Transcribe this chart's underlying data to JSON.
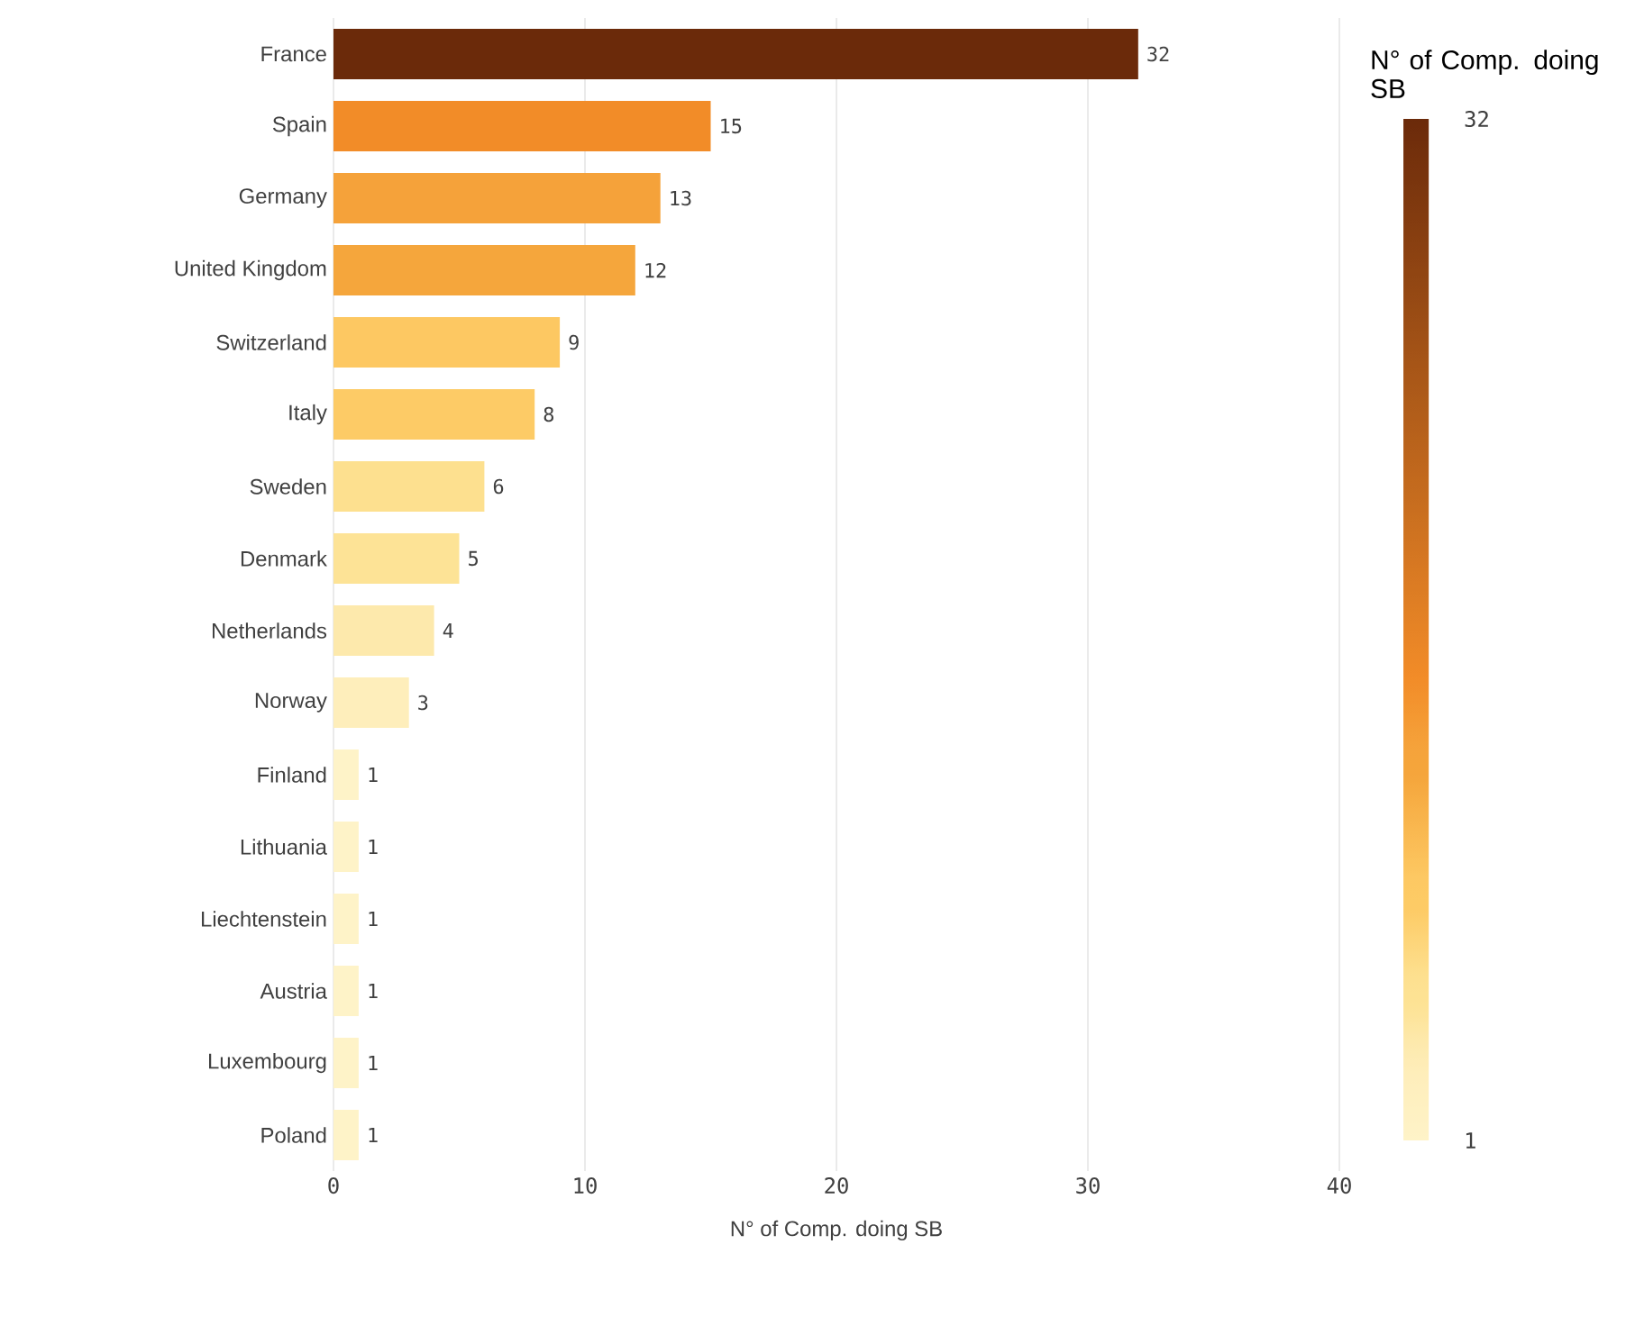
{
  "chart_data": {
    "type": "bar",
    "orientation": "horizontal",
    "xlabel": "N° of Comp. doing SB",
    "clabel": "N° of Comp. doing SB",
    "categories": [
      "France",
      "Spain",
      "Germany",
      "United Kingdom",
      "Switzerland",
      "Italy",
      "Sweden",
      "Denmark",
      "Netherlands",
      "Norway",
      "Finland",
      "Lithuania",
      "Liechtenstein",
      "Austria",
      "Luxembourg",
      "Poland"
    ],
    "values": [
      32,
      15,
      13,
      12,
      9,
      8,
      6,
      5,
      4,
      3,
      1,
      1,
      1,
      1,
      1,
      1
    ],
    "colors": [
      "#6b2a0a",
      "#f28c28",
      "#f5a23a",
      "#f5a63c",
      "#fdc862",
      "#fdcb66",
      "#fde08f",
      "#fde396",
      "#fde9ac",
      "#feeebb",
      "#fef3c8",
      "#fef3c8",
      "#fef3c8",
      "#fef3c8",
      "#fef3c8",
      "#fef3c8"
    ],
    "xlim": [
      0,
      40
    ],
    "xticks": [
      0,
      10,
      20,
      30,
      40
    ],
    "grid": "x",
    "data_labels": true,
    "clim": [
      1,
      32
    ],
    "cticks": [
      1,
      32
    ]
  }
}
